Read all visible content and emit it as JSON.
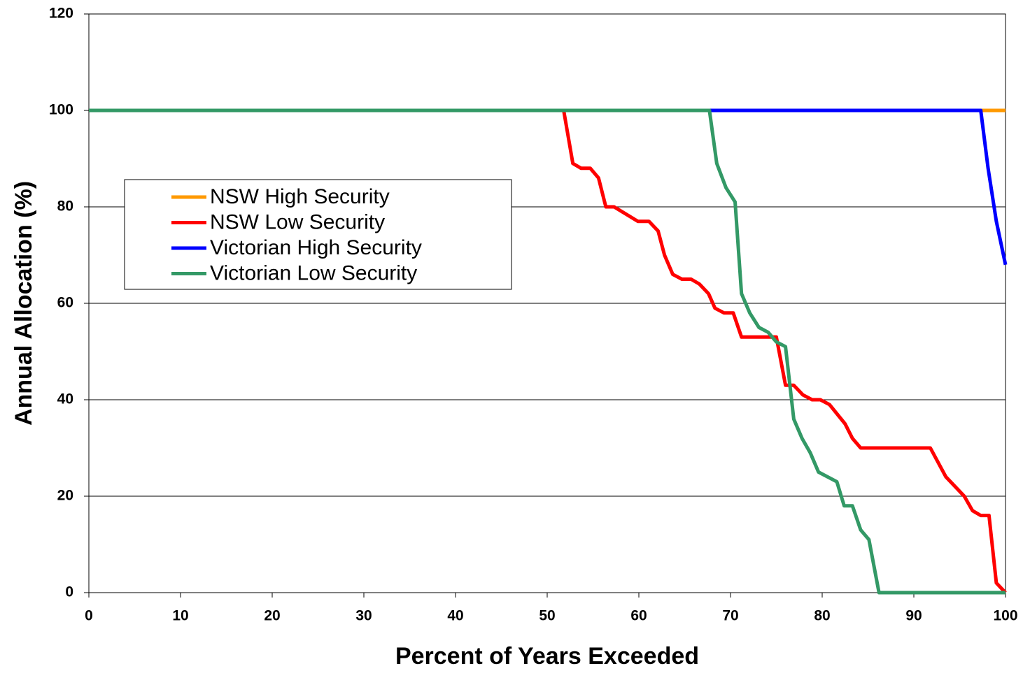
{
  "chart_data": {
    "type": "line",
    "x_label": "Percent of Years Exceeded",
    "y_label": "Annual Allocation (%)",
    "xlim": [
      0,
      100
    ],
    "xticks": [
      0,
      10,
      20,
      30,
      40,
      50,
      60,
      70,
      80,
      90,
      100
    ],
    "ylim": [
      0,
      120
    ],
    "yticks": [
      0,
      20,
      40,
      60,
      80,
      100,
      120
    ],
    "grid": true,
    "legend": "center-left",
    "series": [
      {
        "name": "NSW High Security",
        "color": "#ff9900",
        "x": [
          0,
          100
        ],
        "values": [
          100,
          100
        ]
      },
      {
        "name": "NSW Low Security",
        "color": "#ff0000",
        "x": [
          0,
          51.8,
          52.8,
          53.7,
          54.7,
          55.6,
          56.4,
          57.3,
          59.9,
          61.1,
          62.1,
          62.8,
          63.7,
          64.7,
          65.7,
          66.6,
          67.6,
          68.3,
          69.3,
          70.3,
          71.2,
          75.0,
          76.0,
          76.9,
          77.9,
          78.9,
          79.8,
          80.8,
          82.5,
          83.3,
          84.2,
          91.8,
          93.5,
          95.5,
          96.4,
          97.3,
          98.2,
          99.0,
          100
        ],
        "values": [
          100,
          100,
          89,
          88,
          88,
          86,
          80,
          80,
          77,
          77,
          75,
          70,
          66,
          65,
          65,
          64,
          62,
          59,
          58,
          58,
          53,
          53,
          43,
          43,
          41,
          40,
          40,
          39,
          35,
          32,
          30,
          30,
          24,
          20,
          17,
          16,
          16,
          2,
          0
        ]
      },
      {
        "name": "Victorian High Security",
        "color": "#0000ff",
        "x": [
          0,
          97.3,
          98.1,
          99.0,
          100
        ],
        "values": [
          100,
          100,
          88,
          77,
          68
        ]
      },
      {
        "name": "Victorian Low Security",
        "color": "#339966",
        "x": [
          0,
          67.7,
          68.5,
          69.5,
          70.5,
          71.2,
          72.1,
          73.1,
          74.1,
          75.0,
          76.0,
          76.9,
          77.8,
          78.7,
          79.6,
          81.6,
          82.4,
          83.3,
          84.2,
          85.1,
          86.2,
          100
        ],
        "values": [
          100,
          100,
          89,
          84,
          81,
          62,
          58,
          55,
          54,
          52,
          51,
          36,
          32,
          29,
          25,
          23,
          18,
          18,
          13,
          11,
          0,
          0
        ]
      }
    ]
  }
}
